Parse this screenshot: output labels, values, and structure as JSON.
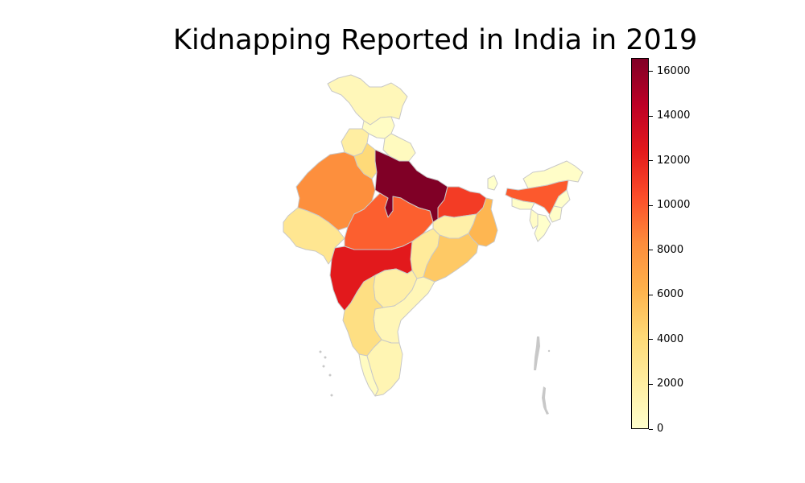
{
  "title": "Kidnapping Reported in India in 2019",
  "colorbar": {
    "colormap": "YlOrRd",
    "min": 0,
    "max": 16600,
    "ticks": [
      "0",
      "2000",
      "4000",
      "6000",
      "8000",
      "10000",
      "12000",
      "14000",
      "16000"
    ],
    "colors": [
      "#ffffcc",
      "#ffeda0",
      "#fed976",
      "#feb24c",
      "#fd8d3c",
      "#fc4e2a",
      "#e31a1c",
      "#bd0026",
      "#800026"
    ]
  },
  "style": {
    "border_color": "#c8c8c8",
    "islands_color": "#c8c8c8",
    "background": "#ffffff"
  },
  "regions": [
    {
      "id": "jammu-kashmir",
      "value": 900
    },
    {
      "id": "himachal-pradesh",
      "value": 400
    },
    {
      "id": "punjab",
      "value": 2000
    },
    {
      "id": "haryana",
      "value": 4000
    },
    {
      "id": "uttarakhand",
      "value": 600
    },
    {
      "id": "rajasthan",
      "value": 8200
    },
    {
      "id": "uttar-pradesh",
      "value": 16600
    },
    {
      "id": "gujarat",
      "value": 2800
    },
    {
      "id": "madhya-pradesh",
      "value": 9800
    },
    {
      "id": "bihar",
      "value": 11100
    },
    {
      "id": "jharkhand",
      "value": 1700
    },
    {
      "id": "west-bengal",
      "value": 6000
    },
    {
      "id": "chhattisgarh",
      "value": 2300
    },
    {
      "id": "odisha",
      "value": 5000
    },
    {
      "id": "maharashtra",
      "value": 12500
    },
    {
      "id": "telangana",
      "value": 1800
    },
    {
      "id": "andhra-pradesh",
      "value": 1000
    },
    {
      "id": "karnataka",
      "value": 3500
    },
    {
      "id": "kerala",
      "value": 500
    },
    {
      "id": "tamil-nadu",
      "value": 1200
    },
    {
      "id": "sikkim",
      "value": 50
    },
    {
      "id": "arunachal-pradesh",
      "value": 200
    },
    {
      "id": "assam",
      "value": 10000
    },
    {
      "id": "nagaland",
      "value": 100
    },
    {
      "id": "manipur",
      "value": 200
    },
    {
      "id": "mizoram",
      "value": 50
    },
    {
      "id": "tripura",
      "value": 300
    },
    {
      "id": "meghalaya",
      "value": 200
    }
  ]
}
